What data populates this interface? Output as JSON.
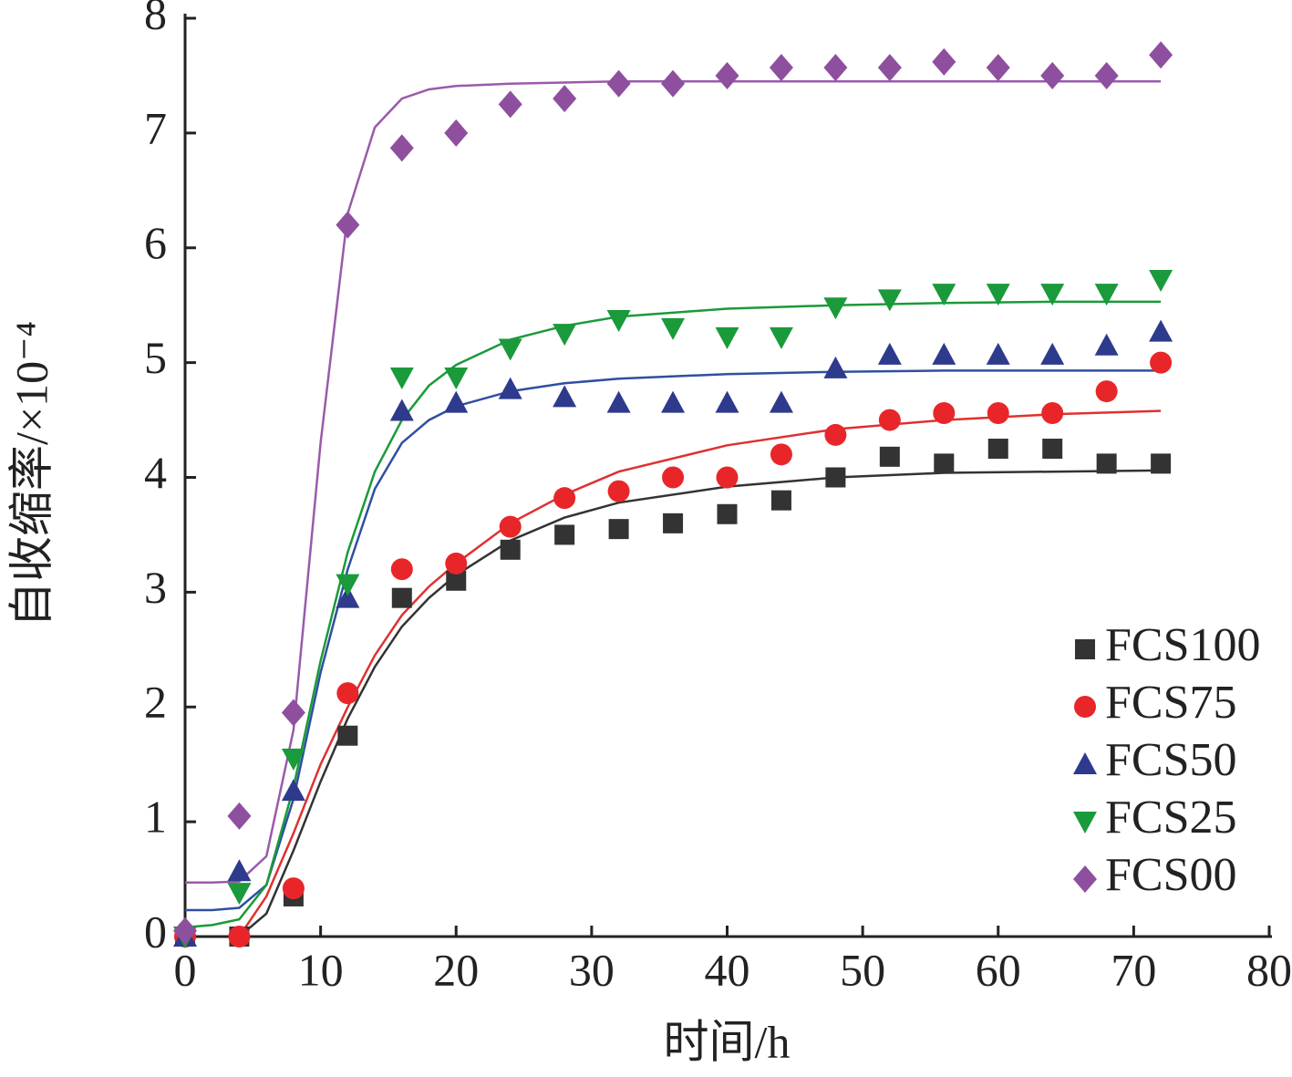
{
  "chart_data": {
    "type": "scatter",
    "xlabel": "时间/h",
    "ylabel": "自收缩率/×10⁻⁴",
    "xlim": [
      0,
      80
    ],
    "ylim": [
      0,
      8
    ],
    "xticks": [
      0,
      10,
      20,
      30,
      40,
      50,
      60,
      70,
      80
    ],
    "yticks": [
      0,
      1,
      2,
      3,
      4,
      5,
      6,
      7,
      8
    ],
    "x": [
      0,
      4,
      8,
      12,
      16,
      20,
      24,
      28,
      32,
      36,
      40,
      44,
      48,
      52,
      56,
      60,
      64,
      68,
      72
    ],
    "fit_x": [
      0,
      2,
      4,
      6,
      8,
      10,
      12,
      14,
      16,
      18,
      20,
      24,
      28,
      32,
      40,
      48,
      56,
      64,
      72
    ],
    "series": [
      {
        "name": "FCS100",
        "color": "#333333",
        "line_color": "#333333",
        "marker": "square",
        "values": [
          0,
          0,
          0.35,
          1.75,
          2.95,
          3.1,
          3.37,
          3.5,
          3.55,
          3.6,
          3.68,
          3.8,
          4.0,
          4.18,
          4.12,
          4.25,
          4.25,
          4.12,
          4.12
        ],
        "fit": [
          null,
          null,
          0,
          0.2,
          0.75,
          1.35,
          1.9,
          2.35,
          2.7,
          2.95,
          3.15,
          3.45,
          3.65,
          3.78,
          3.92,
          4.0,
          4.04,
          4.05,
          4.06
        ]
      },
      {
        "name": "FCS75",
        "color": "#e8262a",
        "line_color": "#e03030",
        "marker": "circle",
        "values": [
          0,
          0,
          0.42,
          2.12,
          3.2,
          3.25,
          3.57,
          3.82,
          3.88,
          4.0,
          4.0,
          4.2,
          4.37,
          4.5,
          4.56,
          4.56,
          4.56,
          4.75,
          5.0
        ],
        "fit": [
          null,
          null,
          0,
          0.35,
          0.9,
          1.5,
          2.0,
          2.45,
          2.8,
          3.05,
          3.25,
          3.6,
          3.85,
          4.05,
          4.28,
          4.42,
          4.5,
          4.55,
          4.58
        ]
      },
      {
        "name": "FCS50",
        "color": "#2e3a8c",
        "line_color": "#2f4fa0",
        "marker": "triangle-up",
        "values": [
          0,
          0.57,
          1.27,
          2.95,
          4.58,
          4.65,
          4.77,
          4.7,
          4.65,
          4.65,
          4.65,
          4.65,
          4.95,
          5.07,
          5.07,
          5.07,
          5.07,
          5.15,
          5.27
        ],
        "fit": [
          0.23,
          0.23,
          0.25,
          0.45,
          1.2,
          2.3,
          3.2,
          3.9,
          4.3,
          4.5,
          4.62,
          4.75,
          4.82,
          4.86,
          4.9,
          4.92,
          4.93,
          4.93,
          4.93
        ]
      },
      {
        "name": "FCS25",
        "color": "#1a9a3a",
        "line_color": "#1a9a3a",
        "marker": "triangle-down",
        "values": [
          0,
          0.38,
          1.55,
          3.07,
          4.87,
          4.87,
          5.12,
          5.25,
          5.37,
          5.3,
          5.22,
          5.22,
          5.48,
          5.55,
          5.6,
          5.6,
          5.6,
          5.6,
          5.72
        ],
        "fit": [
          0.08,
          0.1,
          0.15,
          0.45,
          1.3,
          2.4,
          3.35,
          4.05,
          4.5,
          4.8,
          4.98,
          5.2,
          5.32,
          5.4,
          5.47,
          5.5,
          5.52,
          5.53,
          5.53
        ]
      },
      {
        "name": "FCS00",
        "color": "#8e4f9e",
        "line_color": "#9a5aaa",
        "marker": "diamond",
        "values": [
          0.05,
          1.05,
          1.95,
          6.2,
          6.87,
          7.0,
          7.25,
          7.3,
          7.43,
          7.43,
          7.5,
          7.57,
          7.57,
          7.57,
          7.62,
          7.57,
          7.5,
          7.5,
          7.68
        ],
        "fit": [
          0.47,
          0.47,
          0.48,
          0.7,
          1.8,
          4.3,
          6.3,
          7.05,
          7.3,
          7.38,
          7.41,
          7.43,
          7.44,
          7.45,
          7.45,
          7.45,
          7.45,
          7.45,
          7.45
        ]
      }
    ]
  }
}
